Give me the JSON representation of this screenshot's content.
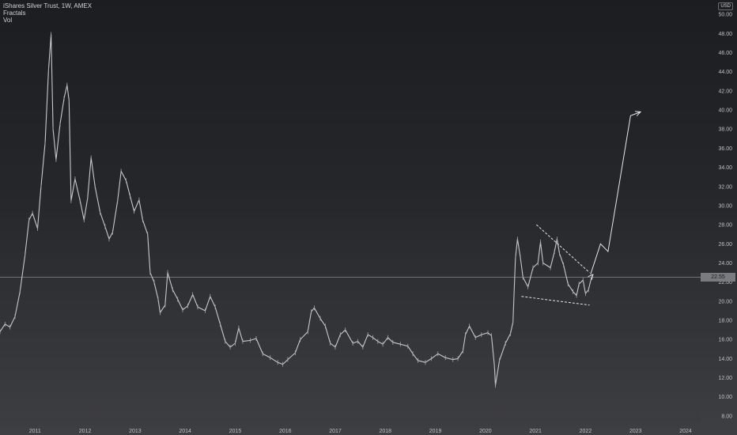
{
  "header": {
    "title": "iShares Silver Trust, 1W, AMEX",
    "indicators": [
      "Fractals",
      "Vol"
    ],
    "currency": "USD"
  },
  "price_line": {
    "value": 22.5,
    "label": "22.55"
  },
  "chart_data": {
    "type": "line",
    "title": "iShares Silver Trust, 1W, AMEX",
    "xlabel": "",
    "ylabel": "",
    "x_ticks": [
      "2011",
      "2012",
      "2013",
      "2014",
      "2015",
      "2016",
      "2017",
      "2018",
      "2019",
      "2020",
      "2021",
      "2022",
      "2023",
      "2024"
    ],
    "y_ticks": [
      "8.00",
      "10.00",
      "12.00",
      "14.00",
      "16.00",
      "18.00",
      "20.00",
      "22.00",
      "24.00",
      "26.00",
      "28.00",
      "30.00",
      "32.00",
      "34.00",
      "36.00",
      "38.00",
      "40.00",
      "42.00",
      "44.00",
      "46.00",
      "48.00",
      "50.00"
    ],
    "xlim": [
      2010.3,
      2024.3
    ],
    "ylim": [
      7,
      51.5
    ],
    "series": [
      {
        "values": [
          [
            2010.3,
            16.8
          ],
          [
            2010.4,
            17.6
          ],
          [
            2010.5,
            17.3
          ],
          [
            2010.6,
            18.4
          ],
          [
            2010.7,
            21.0
          ],
          [
            2010.8,
            24.8
          ],
          [
            2010.88,
            28.5
          ],
          [
            2010.95,
            29.2
          ],
          [
            2011.05,
            27.6
          ],
          [
            2011.12,
            32.0
          ],
          [
            2011.2,
            36.5
          ],
          [
            2011.27,
            44.2
          ],
          [
            2011.32,
            47.9
          ],
          [
            2011.36,
            38.0
          ],
          [
            2011.42,
            34.8
          ],
          [
            2011.5,
            38.5
          ],
          [
            2011.58,
            41.2
          ],
          [
            2011.64,
            42.6
          ],
          [
            2011.68,
            41.0
          ],
          [
            2011.72,
            30.5
          ],
          [
            2011.8,
            32.8
          ],
          [
            2011.9,
            30.5
          ],
          [
            2011.98,
            28.5
          ],
          [
            2012.05,
            30.8
          ],
          [
            2012.12,
            35.0
          ],
          [
            2012.2,
            32.0
          ],
          [
            2012.3,
            29.3
          ],
          [
            2012.4,
            27.8
          ],
          [
            2012.48,
            26.5
          ],
          [
            2012.55,
            27.2
          ],
          [
            2012.65,
            30.5
          ],
          [
            2012.72,
            33.6
          ],
          [
            2012.82,
            32.6
          ],
          [
            2012.9,
            31.0
          ],
          [
            2012.98,
            29.4
          ],
          [
            2013.08,
            30.6
          ],
          [
            2013.15,
            28.5
          ],
          [
            2013.25,
            27.0
          ],
          [
            2013.3,
            23.0
          ],
          [
            2013.38,
            22.0
          ],
          [
            2013.46,
            20.2
          ],
          [
            2013.5,
            18.8
          ],
          [
            2013.6,
            19.6
          ],
          [
            2013.65,
            23.0
          ],
          [
            2013.75,
            21.2
          ],
          [
            2013.85,
            20.2
          ],
          [
            2013.95,
            19.1
          ],
          [
            2014.05,
            19.5
          ],
          [
            2014.15,
            20.7
          ],
          [
            2014.25,
            19.4
          ],
          [
            2014.4,
            19.0
          ],
          [
            2014.5,
            20.5
          ],
          [
            2014.6,
            19.4
          ],
          [
            2014.7,
            17.6
          ],
          [
            2014.8,
            15.8
          ],
          [
            2014.9,
            15.2
          ],
          [
            2015.0,
            15.6
          ],
          [
            2015.07,
            17.2
          ],
          [
            2015.15,
            15.8
          ],
          [
            2015.3,
            15.9
          ],
          [
            2015.42,
            16.1
          ],
          [
            2015.55,
            14.5
          ],
          [
            2015.7,
            14.1
          ],
          [
            2015.85,
            13.6
          ],
          [
            2015.95,
            13.4
          ],
          [
            2016.05,
            13.9
          ],
          [
            2016.2,
            14.6
          ],
          [
            2016.3,
            16.0
          ],
          [
            2016.45,
            16.8
          ],
          [
            2016.52,
            18.9
          ],
          [
            2016.58,
            19.3
          ],
          [
            2016.7,
            18.2
          ],
          [
            2016.8,
            17.4
          ],
          [
            2016.9,
            15.6
          ],
          [
            2017.0,
            15.2
          ],
          [
            2017.1,
            16.5
          ],
          [
            2017.2,
            17.0
          ],
          [
            2017.35,
            15.6
          ],
          [
            2017.45,
            15.8
          ],
          [
            2017.55,
            15.2
          ],
          [
            2017.65,
            16.5
          ],
          [
            2017.75,
            16.2
          ],
          [
            2017.85,
            15.8
          ],
          [
            2017.95,
            15.5
          ],
          [
            2018.05,
            16.2
          ],
          [
            2018.15,
            15.7
          ],
          [
            2018.3,
            15.5
          ],
          [
            2018.45,
            15.3
          ],
          [
            2018.55,
            14.5
          ],
          [
            2018.65,
            13.8
          ],
          [
            2018.8,
            13.6
          ],
          [
            2018.92,
            14.0
          ],
          [
            2019.05,
            14.5
          ],
          [
            2019.2,
            14.1
          ],
          [
            2019.35,
            13.9
          ],
          [
            2019.45,
            14.0
          ],
          [
            2019.55,
            14.8
          ],
          [
            2019.6,
            16.5
          ],
          [
            2019.68,
            17.4
          ],
          [
            2019.8,
            16.2
          ],
          [
            2019.92,
            16.5
          ],
          [
            2020.05,
            16.7
          ],
          [
            2020.12,
            16.4
          ],
          [
            2020.18,
            13.2
          ],
          [
            2020.2,
            11.2
          ],
          [
            2020.28,
            13.8
          ],
          [
            2020.4,
            15.6
          ],
          [
            2020.5,
            16.6
          ],
          [
            2020.55,
            17.8
          ],
          [
            2020.6,
            24.5
          ],
          [
            2020.64,
            26.5
          ],
          [
            2020.7,
            24.5
          ],
          [
            2020.75,
            22.5
          ],
          [
            2020.85,
            21.5
          ],
          [
            2020.95,
            23.5
          ],
          [
            2021.05,
            24.0
          ],
          [
            2021.1,
            26.2
          ],
          [
            2021.15,
            24.0
          ],
          [
            2021.3,
            23.5
          ],
          [
            2021.38,
            25.2
          ],
          [
            2021.43,
            26.5
          ],
          [
            2021.48,
            25.0
          ],
          [
            2021.56,
            23.8
          ],
          [
            2021.65,
            21.8
          ],
          [
            2021.75,
            21.0
          ],
          [
            2021.82,
            20.6
          ],
          [
            2021.87,
            21.8
          ],
          [
            2021.95,
            22.2
          ],
          [
            2022.0,
            20.8
          ],
          [
            2022.06,
            21.2
          ],
          [
            2022.12,
            22.5
          ]
        ]
      }
    ],
    "annotations": {
      "wedge_upper": [
        [
          2021.02,
          28.0
        ],
        [
          2022.08,
          23.0
        ]
      ],
      "wedge_lower": [
        [
          2020.72,
          20.5
        ],
        [
          2022.08,
          19.6
        ]
      ],
      "projection": [
        [
          2022.1,
          22.8
        ],
        [
          2022.3,
          26.0
        ],
        [
          2022.45,
          25.2
        ],
        [
          2022.9,
          39.4
        ],
        [
          2023.1,
          39.8
        ]
      ]
    }
  }
}
